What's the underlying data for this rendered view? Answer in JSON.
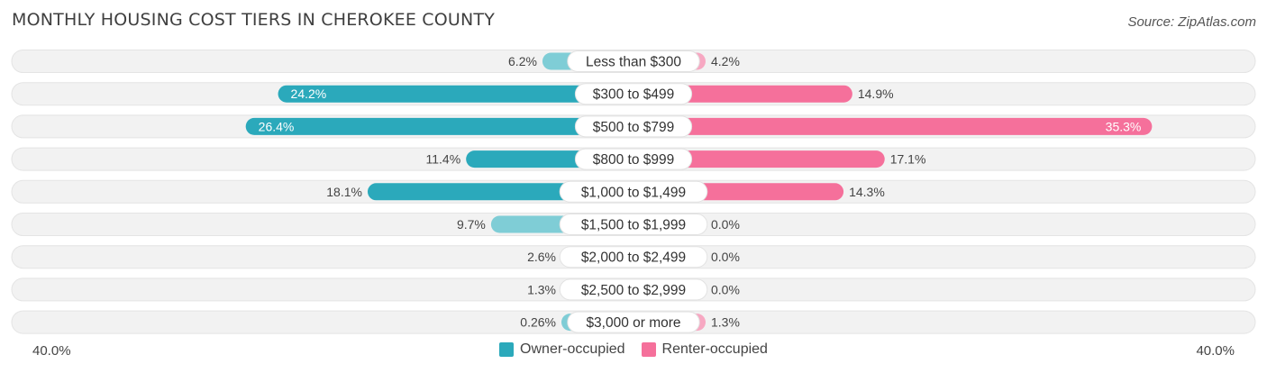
{
  "title": "MONTHLY HOUSING COST TIERS IN CHEROKEE COUNTY",
  "source": "Source: ZipAtlas.com",
  "axis": {
    "left_label": "40.0%",
    "right_label": "40.0%"
  },
  "legend": {
    "owner_label": "Owner-occupied",
    "renter_label": "Renter-occupied"
  },
  "colors": {
    "owner_strong": "#2ba9bb",
    "owner_light": "#7fcdd6",
    "renter_strong": "#f5709b",
    "renter_light": "#f7a8c2",
    "track": "#f2f2f2"
  },
  "chart_data": {
    "type": "bar",
    "orientation": "horizontal-diverging",
    "title": "MONTHLY HOUSING COST TIERS IN CHEROKEE COUNTY",
    "xlim": [
      -40,
      40
    ],
    "categories": [
      "Less than $300",
      "$300 to $499",
      "$500 to $799",
      "$800 to $999",
      "$1,000 to $1,499",
      "$1,500 to $1,999",
      "$2,000 to $2,499",
      "$2,500 to $2,999",
      "$3,000 or more"
    ],
    "series": [
      {
        "name": "Owner-occupied",
        "values": [
          6.2,
          24.2,
          26.4,
          11.4,
          18.1,
          9.7,
          2.6,
          1.3,
          0.26
        ],
        "labels": [
          "6.2%",
          "24.2%",
          "26.4%",
          "11.4%",
          "18.1%",
          "9.7%",
          "2.6%",
          "1.3%",
          "0.26%"
        ]
      },
      {
        "name": "Renter-occupied",
        "values": [
          4.2,
          14.9,
          35.3,
          17.1,
          14.3,
          0.0,
          0.0,
          0.0,
          1.3
        ],
        "labels": [
          "4.2%",
          "14.9%",
          "35.3%",
          "17.1%",
          "14.3%",
          "0.0%",
          "0.0%",
          "0.0%",
          "1.3%"
        ]
      }
    ]
  }
}
